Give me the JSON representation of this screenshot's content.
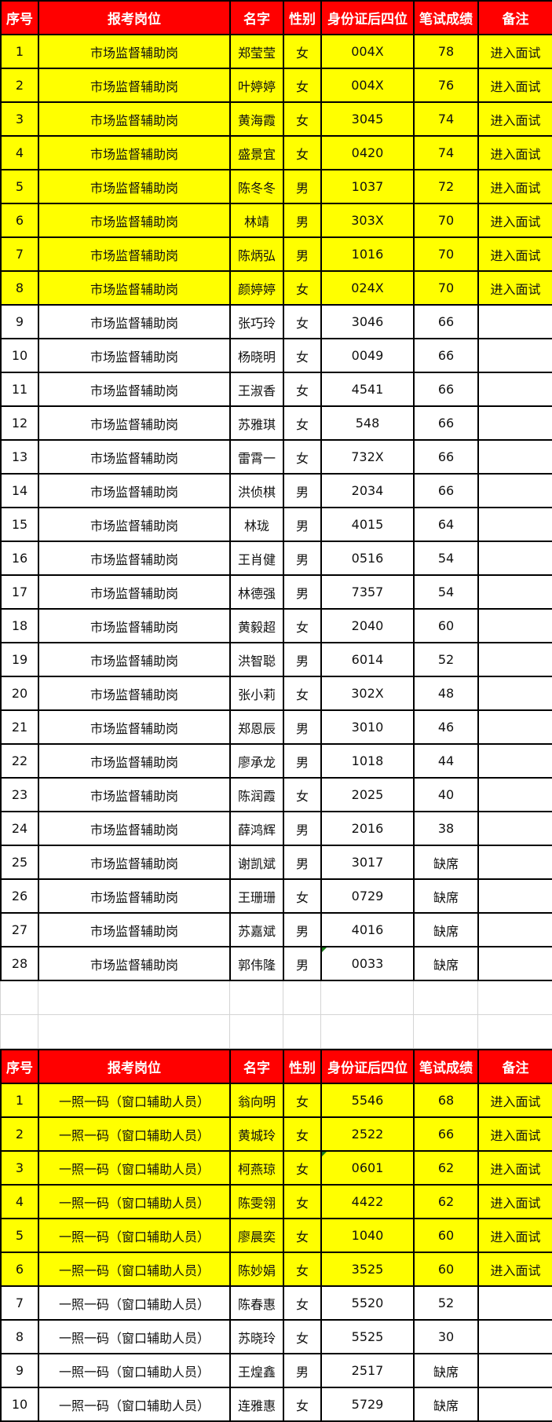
{
  "headers": [
    "序号",
    "报考岗位",
    "名字",
    "性别",
    "身份证后四位",
    "笔试成绩",
    "备注"
  ],
  "colors": {
    "header_bg": "#ff0000",
    "header_text": "#ffffff",
    "highlight_bg": "#ffff00"
  },
  "table1": {
    "rows": [
      [
        "1",
        "市场监督辅助岗",
        "郑莹莹",
        "女",
        "004X",
        "78",
        "进入面试"
      ],
      [
        "2",
        "市场监督辅助岗",
        "叶婷婷",
        "女",
        "004X",
        "76",
        "进入面试"
      ],
      [
        "3",
        "市场监督辅助岗",
        "黄海霞",
        "女",
        "3045",
        "74",
        "进入面试"
      ],
      [
        "4",
        "市场监督辅助岗",
        "盛景宜",
        "女",
        "0420",
        "74",
        "进入面试"
      ],
      [
        "5",
        "市场监督辅助岗",
        "陈冬冬",
        "男",
        "1037",
        "72",
        "进入面试"
      ],
      [
        "6",
        "市场监督辅助岗",
        "林靖",
        "男",
        "303X",
        "70",
        "进入面试"
      ],
      [
        "7",
        "市场监督辅助岗",
        "陈炳弘",
        "男",
        "1016",
        "70",
        "进入面试"
      ],
      [
        "8",
        "市场监督辅助岗",
        "颜婷婷",
        "女",
        "024X",
        "70",
        "进入面试"
      ],
      [
        "9",
        "市场监督辅助岗",
        "张巧玲",
        "女",
        "3046",
        "66",
        ""
      ],
      [
        "10",
        "市场监督辅助岗",
        "杨晓明",
        "女",
        "0049",
        "66",
        ""
      ],
      [
        "11",
        "市场监督辅助岗",
        "王淑香",
        "女",
        "4541",
        "66",
        ""
      ],
      [
        "12",
        "市场监督辅助岗",
        "苏雅琪",
        "女",
        "548",
        "66",
        ""
      ],
      [
        "13",
        "市场监督辅助岗",
        "雷霄一",
        "女",
        "732X",
        "66",
        ""
      ],
      [
        "14",
        "市场监督辅助岗",
        "洪侦棋",
        "男",
        "2034",
        "66",
        ""
      ],
      [
        "15",
        "市场监督辅助岗",
        "林珑",
        "男",
        "4015",
        "64",
        ""
      ],
      [
        "16",
        "市场监督辅助岗",
        "王肖健",
        "男",
        "0516",
        "54",
        ""
      ],
      [
        "17",
        "市场监督辅助岗",
        "林德强",
        "男",
        "7357",
        "54",
        ""
      ],
      [
        "18",
        "市场监督辅助岗",
        "黄毅超",
        "女",
        "2040",
        "60",
        ""
      ],
      [
        "19",
        "市场监督辅助岗",
        "洪智聪",
        "男",
        "6014",
        "52",
        ""
      ],
      [
        "20",
        "市场监督辅助岗",
        "张小莉",
        "女",
        "302X",
        "48",
        ""
      ],
      [
        "21",
        "市场监督辅助岗",
        "郑恩辰",
        "男",
        "3010",
        "46",
        ""
      ],
      [
        "22",
        "市场监督辅助岗",
        "廖承龙",
        "男",
        "1018",
        "44",
        ""
      ],
      [
        "23",
        "市场监督辅助岗",
        "陈润霞",
        "女",
        "2025",
        "40",
        ""
      ],
      [
        "24",
        "市场监督辅助岗",
        "薛鸿辉",
        "男",
        "2016",
        "38",
        ""
      ],
      [
        "25",
        "市场监督辅助岗",
        "谢凯斌",
        "男",
        "3017",
        "缺席",
        ""
      ],
      [
        "26",
        "市场监督辅助岗",
        "王珊珊",
        "女",
        "0729",
        "缺席",
        ""
      ],
      [
        "27",
        "市场监督辅助岗",
        "苏嘉斌",
        "男",
        "4016",
        "缺席",
        ""
      ],
      [
        "28",
        "市场监督辅助岗",
        "郭伟隆",
        "男",
        "0033",
        "缺席",
        ""
      ]
    ],
    "highlighted_count": 8
  },
  "table2": {
    "rows": [
      [
        "1",
        "一照一码（窗口辅助人员）",
        "翁向明",
        "女",
        "5546",
        "68",
        "进入面试"
      ],
      [
        "2",
        "一照一码（窗口辅助人员）",
        "黄城玲",
        "女",
        "2522",
        "66",
        "进入面试"
      ],
      [
        "3",
        "一照一码（窗口辅助人员）",
        "柯燕琼",
        "女",
        "0601",
        "62",
        "进入面试"
      ],
      [
        "4",
        "一照一码（窗口辅助人员）",
        "陈雯翎",
        "女",
        "4422",
        "62",
        "进入面试"
      ],
      [
        "5",
        "一照一码（窗口辅助人员）",
        "廖晨奕",
        "女",
        "1040",
        "60",
        "进入面试"
      ],
      [
        "6",
        "一照一码（窗口辅助人员）",
        "陈妙娟",
        "女",
        "3525",
        "60",
        "进入面试"
      ],
      [
        "7",
        "一照一码（窗口辅助人员）",
        "陈春惠",
        "女",
        "5520",
        "52",
        ""
      ],
      [
        "8",
        "一照一码（窗口辅助人员）",
        "苏晓玲",
        "女",
        "5525",
        "30",
        ""
      ],
      [
        "9",
        "一照一码（窗口辅助人员）",
        "王煌鑫",
        "男",
        "2517",
        "缺席",
        ""
      ],
      [
        "10",
        "一照一码（窗口辅助人员）",
        "连雅惠",
        "女",
        "5729",
        "缺席",
        ""
      ]
    ],
    "highlighted_count": 6
  }
}
